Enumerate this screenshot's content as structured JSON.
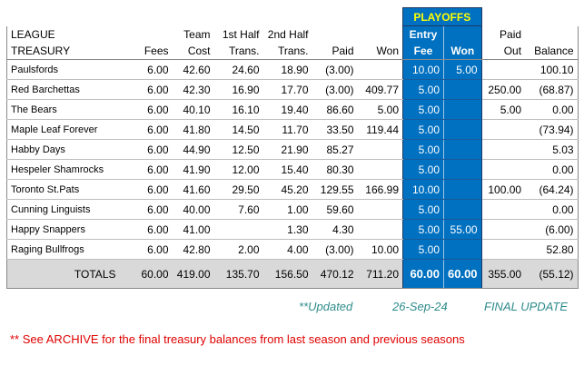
{
  "header": {
    "playoffs_label": "PLAYOFFS",
    "title_line1": "LEAGUE",
    "title_line2": "TREASURY",
    "columns": [
      {
        "line1": "",
        "line2": "Fees"
      },
      {
        "line1": "Team",
        "line2": "Cost"
      },
      {
        "line1": "1st Half",
        "line2": "Trans."
      },
      {
        "line1": "2nd Half",
        "line2": "Trans."
      },
      {
        "line1": "",
        "line2": "Paid"
      },
      {
        "line1": "",
        "line2": "Won"
      },
      {
        "line1": "Entry",
        "line2": "Fee"
      },
      {
        "line1": "",
        "line2": "Won"
      },
      {
        "line1": "Paid",
        "line2": "Out"
      },
      {
        "line1": "",
        "line2": "Balance"
      }
    ]
  },
  "rows": [
    {
      "team": "Paulsfords",
      "fees": "6.00",
      "cost": "42.60",
      "t1": "24.60",
      "t2": "18.90",
      "paid": "(3.00)",
      "won": "",
      "entry_fee": "10.00",
      "p_won": "5.00",
      "paid_out": "",
      "balance": "100.10"
    },
    {
      "team": "Red Barchettas",
      "fees": "6.00",
      "cost": "42.30",
      "t1": "16.90",
      "t2": "17.70",
      "paid": "(3.00)",
      "won": "409.77",
      "entry_fee": "5.00",
      "p_won": "",
      "paid_out": "250.00",
      "balance": "(68.87)"
    },
    {
      "team": "The Bears",
      "fees": "6.00",
      "cost": "40.10",
      "t1": "16.10",
      "t2": "19.40",
      "paid": "86.60",
      "won": "5.00",
      "entry_fee": "5.00",
      "p_won": "",
      "paid_out": "5.00",
      "balance": "0.00"
    },
    {
      "team": "Maple Leaf Forever",
      "fees": "6.00",
      "cost": "41.80",
      "t1": "14.50",
      "t2": "11.70",
      "paid": "33.50",
      "won": "119.44",
      "entry_fee": "5.00",
      "p_won": "",
      "paid_out": "",
      "balance": "(73.94)"
    },
    {
      "team": "Habby Days",
      "fees": "6.00",
      "cost": "44.90",
      "t1": "12.50",
      "t2": "21.90",
      "paid": "85.27",
      "won": "",
      "entry_fee": "5.00",
      "p_won": "",
      "paid_out": "",
      "balance": "5.03"
    },
    {
      "team": "Hespeler Shamrocks",
      "fees": "6.00",
      "cost": "41.90",
      "t1": "12.00",
      "t2": "15.40",
      "paid": "80.30",
      "won": "",
      "entry_fee": "5.00",
      "p_won": "",
      "paid_out": "",
      "balance": "0.00"
    },
    {
      "team": "Toronto St.Pats",
      "fees": "6.00",
      "cost": "41.60",
      "t1": "29.50",
      "t2": "45.20",
      "paid": "129.55",
      "won": "166.99",
      "entry_fee": "10.00",
      "p_won": "",
      "paid_out": "100.00",
      "balance": "(64.24)"
    },
    {
      "team": "Cunning Linguists",
      "fees": "6.00",
      "cost": "40.00",
      "t1": "7.60",
      "t2": "1.00",
      "paid": "59.60",
      "won": "",
      "entry_fee": "5.00",
      "p_won": "",
      "paid_out": "",
      "balance": "0.00"
    },
    {
      "team": "Happy Snappers",
      "fees": "6.00",
      "cost": "41.00",
      "t1": "",
      "t2": "1.30",
      "paid": "4.30",
      "won": "",
      "entry_fee": "5.00",
      "p_won": "55.00",
      "paid_out": "",
      "balance": "(6.00)"
    },
    {
      "team": "Raging Bullfrogs",
      "fees": "6.00",
      "cost": "42.80",
      "t1": "2.00",
      "t2": "4.00",
      "paid": "(3.00)",
      "won": "10.00",
      "entry_fee": "5.00",
      "p_won": "",
      "paid_out": "",
      "balance": "52.80"
    }
  ],
  "totals": {
    "label": "TOTALS",
    "fees": "60.00",
    "cost": "419.00",
    "t1": "135.70",
    "t2": "156.50",
    "paid": "470.12",
    "won": "711.20",
    "entry_fee": "60.00",
    "p_won": "60.00",
    "paid_out": "355.00",
    "balance": "(55.12)"
  },
  "footer": {
    "updated_label": "**Updated",
    "updated_date": "26-Sep-24",
    "final_update": "FINAL UPDATE",
    "archive_note": "** See ARCHIVE for the final treasury balances from last season and previous seasons"
  }
}
